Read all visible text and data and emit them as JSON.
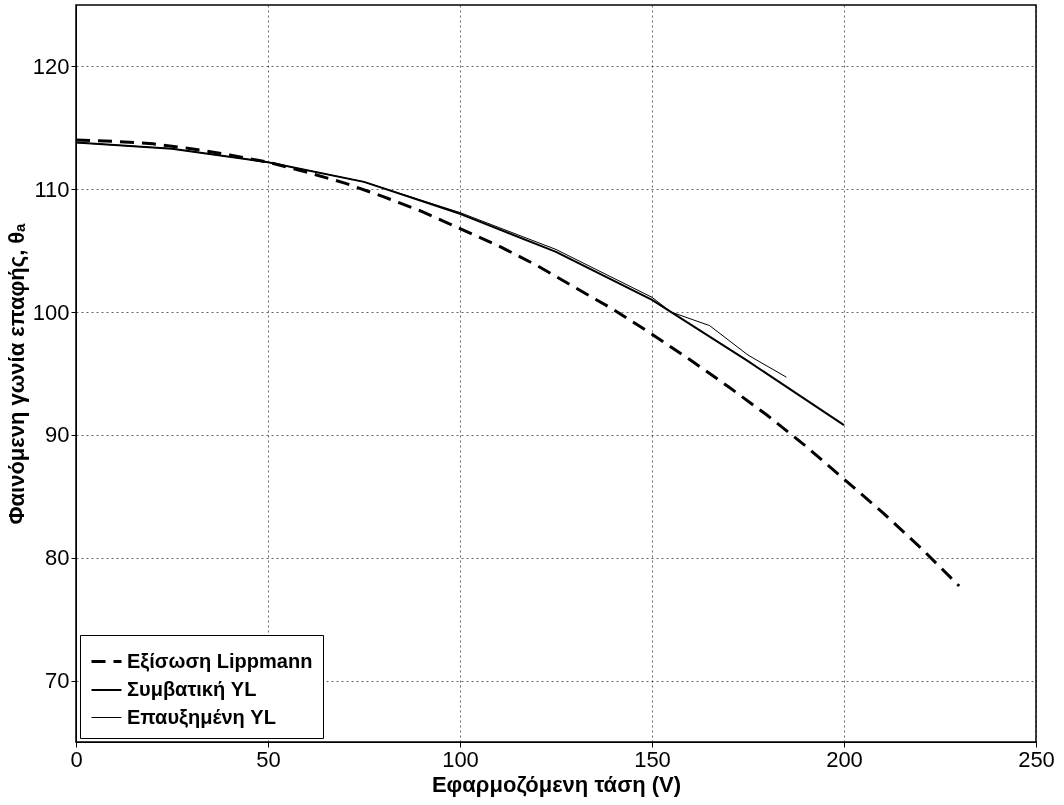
{
  "chart_data": {
    "type": "line",
    "xlabel": "Εφαρμοζόμενη τάση (V)",
    "ylabel": "Φαινόμενη γωνία επαφής, θₐ",
    "xlim": [
      0,
      250
    ],
    "xticks": [
      0,
      50,
      100,
      150,
      200,
      250
    ],
    "ylim": [
      65,
      125
    ],
    "yticks": [
      70,
      80,
      90,
      100,
      110,
      120
    ],
    "grid": true,
    "legend": "bottom left",
    "marker": "none",
    "series": [
      {
        "name": "Εξίσωση Lippmann",
        "color": "#000000",
        "line_style": "dashed",
        "x": [
          0,
          10,
          20,
          30,
          40,
          50,
          60,
          70,
          80,
          90,
          100,
          110,
          120,
          130,
          140,
          150,
          160,
          170,
          180,
          190,
          200,
          210,
          220,
          230
        ],
        "values": [
          114.0,
          113.9,
          113.7,
          113.3,
          112.8,
          112.2,
          111.4,
          110.5,
          109.4,
          108.2,
          106.8,
          105.4,
          103.8,
          102.0,
          100.2,
          98.2,
          96.1,
          93.9,
          91.6,
          89.1,
          86.4,
          83.7,
          80.8,
          77.7
        ]
      },
      {
        "name": "Συμβατική YL",
        "color": "#000000",
        "line_style": "solid",
        "x": [
          0,
          25,
          50,
          75,
          100,
          125,
          150,
          175,
          200
        ],
        "values": [
          113.8,
          113.3,
          112.2,
          110.6,
          108.0,
          104.9,
          101.0,
          96.0,
          90.8
        ]
      },
      {
        "name": "Επαυξημένη YL",
        "color": "#000000",
        "line_style": "solid",
        "x": [
          0,
          25,
          50,
          75,
          100,
          125,
          150,
          155,
          165,
          175,
          185
        ],
        "values": [
          113.8,
          113.3,
          112.2,
          110.6,
          108.1,
          105.1,
          101.2,
          100.0,
          98.9,
          96.5,
          94.7
        ]
      }
    ]
  }
}
